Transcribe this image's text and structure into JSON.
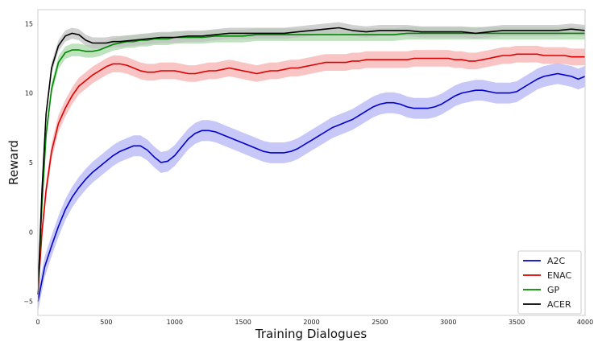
{
  "chart_data": {
    "type": "line",
    "title": "",
    "xlabel": "Training Dialogues",
    "ylabel": "Reward",
    "xlim": [
      0,
      4000
    ],
    "ylim": [
      -6,
      16
    ],
    "xticks": [
      0,
      500,
      1000,
      1500,
      2000,
      2500,
      3000,
      3500,
      4000
    ],
    "yticks": [
      -5,
      0,
      5,
      10,
      15
    ],
    "grid": false,
    "legend_position": "bottom-right",
    "shaded_band": true,
    "series": [
      {
        "name": "A2C",
        "color": "#0000cc",
        "band_color": "#b4b4f5",
        "x": [
          0,
          50,
          100,
          150,
          200,
          250,
          300,
          350,
          400,
          450,
          500,
          550,
          600,
          650,
          700,
          750,
          800,
          850,
          900,
          950,
          1000,
          1050,
          1100,
          1150,
          1200,
          1250,
          1300,
          1350,
          1400,
          1450,
          1500,
          1550,
          1600,
          1650,
          1700,
          1750,
          1800,
          1850,
          1900,
          1950,
          2000,
          2050,
          2100,
          2150,
          2200,
          2250,
          2300,
          2350,
          2400,
          2450,
          2500,
          2550,
          2600,
          2650,
          2700,
          2750,
          2800,
          2850,
          2900,
          2950,
          3000,
          3050,
          3100,
          3150,
          3200,
          3250,
          3300,
          3350,
          3400,
          3450,
          3500,
          3550,
          3600,
          3650,
          3700,
          3750,
          3800,
          3850,
          3900,
          3950,
          4000
        ],
        "values": [
          -5.0,
          -2.5,
          -1.0,
          0.4,
          1.6,
          2.5,
          3.2,
          3.8,
          4.3,
          4.7,
          5.1,
          5.5,
          5.8,
          6.0,
          6.2,
          6.2,
          5.9,
          5.4,
          5.0,
          5.1,
          5.5,
          6.1,
          6.7,
          7.1,
          7.3,
          7.3,
          7.2,
          7.0,
          6.8,
          6.6,
          6.4,
          6.2,
          6.0,
          5.8,
          5.7,
          5.7,
          5.7,
          5.8,
          6.0,
          6.3,
          6.6,
          6.9,
          7.2,
          7.5,
          7.7,
          7.9,
          8.1,
          8.4,
          8.7,
          9.0,
          9.2,
          9.3,
          9.3,
          9.2,
          9.0,
          8.9,
          8.9,
          8.9,
          9.0,
          9.2,
          9.5,
          9.8,
          10.0,
          10.1,
          10.2,
          10.2,
          10.1,
          10.0,
          10.0,
          10.0,
          10.1,
          10.4,
          10.7,
          11.0,
          11.2,
          11.3,
          11.4,
          11.3,
          11.2,
          11.0,
          11.2
        ],
        "band_halfwidth": 0.75
      },
      {
        "name": "ENAC",
        "color": "#dd0000",
        "band_color": "#f7b0b0",
        "x": [
          0,
          30,
          60,
          100,
          150,
          200,
          250,
          300,
          350,
          400,
          450,
          500,
          550,
          600,
          650,
          700,
          750,
          800,
          850,
          900,
          950,
          1000,
          1050,
          1100,
          1150,
          1200,
          1250,
          1300,
          1350,
          1400,
          1450,
          1500,
          1550,
          1600,
          1650,
          1700,
          1750,
          1800,
          1850,
          1900,
          1950,
          2000,
          2050,
          2100,
          2150,
          2200,
          2250,
          2300,
          2350,
          2400,
          2450,
          2500,
          2550,
          2600,
          2650,
          2700,
          2750,
          2800,
          2850,
          2900,
          2950,
          3000,
          3050,
          3100,
          3150,
          3200,
          3250,
          3300,
          3350,
          3400,
          3450,
          3500,
          3550,
          3600,
          3650,
          3700,
          3750,
          3800,
          3850,
          3900,
          3950,
          4000
        ],
        "values": [
          -4.5,
          0.0,
          3.0,
          5.8,
          7.8,
          8.9,
          9.8,
          10.5,
          10.9,
          11.3,
          11.6,
          11.9,
          12.1,
          12.1,
          12.0,
          11.8,
          11.6,
          11.5,
          11.5,
          11.6,
          11.6,
          11.6,
          11.5,
          11.4,
          11.4,
          11.5,
          11.6,
          11.6,
          11.7,
          11.8,
          11.7,
          11.6,
          11.5,
          11.4,
          11.5,
          11.6,
          11.6,
          11.7,
          11.8,
          11.8,
          11.9,
          12.0,
          12.1,
          12.2,
          12.2,
          12.2,
          12.2,
          12.3,
          12.3,
          12.4,
          12.4,
          12.4,
          12.4,
          12.4,
          12.4,
          12.4,
          12.5,
          12.5,
          12.5,
          12.5,
          12.5,
          12.5,
          12.4,
          12.4,
          12.3,
          12.3,
          12.4,
          12.5,
          12.6,
          12.7,
          12.7,
          12.8,
          12.8,
          12.8,
          12.8,
          12.7,
          12.7,
          12.7,
          12.7,
          12.6,
          12.6,
          12.6
        ],
        "band_halfwidth": 0.6
      },
      {
        "name": "GP",
        "color": "#008800",
        "band_color": "#a8d9a8",
        "x": [
          0,
          30,
          60,
          100,
          150,
          200,
          250,
          300,
          350,
          400,
          450,
          500,
          550,
          600,
          650,
          700,
          750,
          800,
          850,
          900,
          950,
          1000,
          1100,
          1200,
          1300,
          1400,
          1500,
          1600,
          1700,
          1800,
          1900,
          2000,
          2100,
          2200,
          2300,
          2400,
          2500,
          2600,
          2700,
          2800,
          2900,
          3000,
          3100,
          3200,
          3300,
          3400,
          3500,
          3600,
          3700,
          3800,
          3900,
          4000
        ],
        "values": [
          -4.5,
          2.0,
          7.0,
          10.3,
          12.2,
          12.9,
          13.1,
          13.1,
          13.0,
          13.0,
          13.1,
          13.3,
          13.5,
          13.6,
          13.7,
          13.7,
          13.8,
          13.8,
          13.9,
          13.9,
          13.9,
          14.0,
          14.0,
          14.0,
          14.1,
          14.1,
          14.1,
          14.2,
          14.2,
          14.2,
          14.2,
          14.2,
          14.2,
          14.2,
          14.2,
          14.2,
          14.2,
          14.2,
          14.3,
          14.3,
          14.3,
          14.3,
          14.3,
          14.3,
          14.3,
          14.3,
          14.3,
          14.3,
          14.3,
          14.3,
          14.3,
          14.3
        ],
        "band_halfwidth": 0.45
      },
      {
        "name": "ACER",
        "color": "#000000",
        "band_color": "#c2c2c2",
        "x": [
          0,
          30,
          60,
          100,
          150,
          200,
          250,
          300,
          350,
          400,
          450,
          500,
          550,
          600,
          700,
          800,
          900,
          1000,
          1100,
          1200,
          1300,
          1400,
          1500,
          1600,
          1700,
          1800,
          1900,
          2000,
          2100,
          2200,
          2300,
          2400,
          2500,
          2600,
          2700,
          2800,
          2900,
          3000,
          3100,
          3200,
          3300,
          3400,
          3500,
          3600,
          3700,
          3800,
          3900,
          4000
        ],
        "values": [
          -4.5,
          3.0,
          8.5,
          11.8,
          13.4,
          14.1,
          14.3,
          14.2,
          13.8,
          13.6,
          13.6,
          13.6,
          13.7,
          13.7,
          13.8,
          13.9,
          14.0,
          14.0,
          14.1,
          14.1,
          14.2,
          14.3,
          14.3,
          14.3,
          14.3,
          14.3,
          14.4,
          14.5,
          14.6,
          14.7,
          14.5,
          14.4,
          14.5,
          14.5,
          14.5,
          14.4,
          14.4,
          14.4,
          14.4,
          14.3,
          14.4,
          14.5,
          14.5,
          14.5,
          14.5,
          14.5,
          14.6,
          14.5
        ],
        "band_halfwidth": 0.4
      }
    ]
  }
}
